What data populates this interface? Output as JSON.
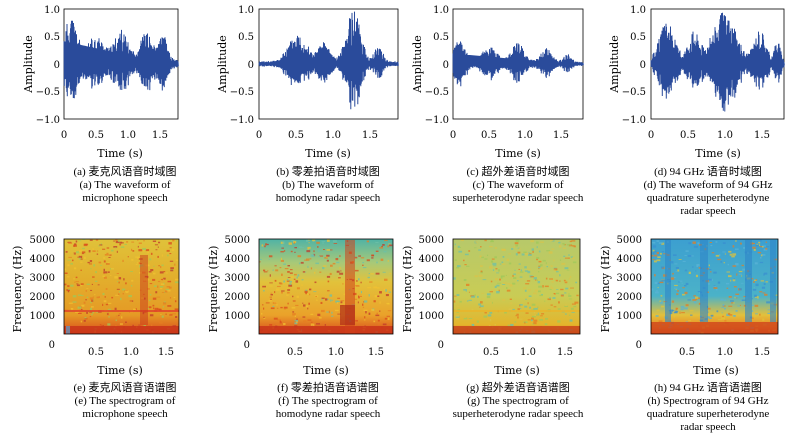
{
  "figure": {
    "row1_common": {
      "ylabel": "Amplitude",
      "xlabel": "Time (s)",
      "y_ticks": [
        "1.0",
        "0.5",
        "0",
        "−0.5",
        "−1.0"
      ],
      "x_ticks": [
        "0",
        "0.5",
        "1.0",
        "1.5"
      ]
    },
    "row2_common": {
      "ylabel": "Frequency (Hz)",
      "xlabel": "Time (s)",
      "y_ticks": [
        "5000",
        "4000",
        "3000",
        "2000",
        "1000",
        "0"
      ],
      "x_ticks": [
        "0.5",
        "1.0",
        "1.5"
      ]
    },
    "panels": [
      {
        "id": "a",
        "cap_cn": "(a) 麦克风语音时域图",
        "cap_en1": "(a) The waveform of",
        "cap_en2": "microphone speech",
        "cap_en3": "",
        "color": "#2a4b9b"
      },
      {
        "id": "b",
        "cap_cn": "(b) 零差拍语音时域图",
        "cap_en1": "(b) The waveform of",
        "cap_en2": "homodyne radar speech",
        "cap_en3": "",
        "color": "#2a4b9b"
      },
      {
        "id": "c",
        "cap_cn": "(c) 超外差语音时域图",
        "cap_en1": "(c) The waveform of",
        "cap_en2": "superheterodyne radar speech",
        "cap_en3": "",
        "color": "#2a4b9b"
      },
      {
        "id": "d",
        "cap_cn": "(d) 94 GHz 语音时域图",
        "cap_en1": "(d) The waveform of 94 GHz",
        "cap_en2": "quadrature superheterodyne",
        "cap_en3": "radar speech",
        "color": "#2a4b9b"
      },
      {
        "id": "e",
        "cap_cn": "(e) 麦克风语音语谱图",
        "cap_en1": "(e) The spectrogram of",
        "cap_en2": "microphone speech",
        "cap_en3": ""
      },
      {
        "id": "f",
        "cap_cn": "(f) 零差拍语音语谱图",
        "cap_en1": "(f) The spectrogram of",
        "cap_en2": "homodyne radar speech",
        "cap_en3": ""
      },
      {
        "id": "g",
        "cap_cn": "(g) 超外差语音语谱图",
        "cap_en1": "(g) The spectrogram of",
        "cap_en2": "superheterodyne radar speech",
        "cap_en3": ""
      },
      {
        "id": "h",
        "cap_cn": "(h) 94 GHz 语音语谱图",
        "cap_en1": "(h) Spectrogram of 94 GHz",
        "cap_en2": "quadrature superheterodyne",
        "cap_en3": "radar speech"
      }
    ]
  }
}
